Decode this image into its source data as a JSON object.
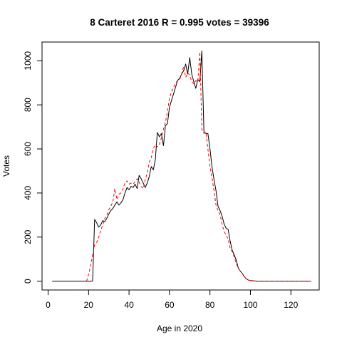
{
  "chart_data": {
    "type": "line",
    "title": "8 Carteret 2016 R = 0.995 votes = 39396",
    "xlabel": "Age in 2020",
    "ylabel": "Votes",
    "xlim": [
      -3,
      134
    ],
    "ylim": [
      -40,
      1085
    ],
    "xticks": [
      0,
      20,
      40,
      60,
      80,
      100,
      120
    ],
    "yticks": [
      0,
      200,
      400,
      600,
      800,
      1000
    ],
    "grid": false,
    "series": [
      {
        "style": "solid",
        "color": "#000000",
        "x": [
          2,
          21,
          22,
          23,
          24,
          25,
          26,
          27,
          28,
          29,
          30,
          31,
          32,
          33,
          34,
          35,
          36,
          37,
          38,
          39,
          40,
          41,
          42,
          43,
          44,
          45,
          46,
          47,
          48,
          49,
          50,
          51,
          52,
          53,
          54,
          55,
          56,
          57,
          58,
          59,
          60,
          61,
          62,
          63,
          64,
          65,
          66,
          67,
          68,
          69,
          70,
          71,
          72,
          73,
          74,
          75,
          76,
          77,
          78,
          79,
          80,
          81,
          82,
          83,
          84,
          85,
          86,
          87,
          88,
          89,
          90,
          91,
          92,
          93,
          94,
          95,
          96,
          97,
          98,
          99,
          100,
          101,
          102,
          103,
          104,
          105,
          106,
          107,
          108,
          110,
          115,
          120,
          130
        ],
        "y": [
          0,
          0,
          0,
          280,
          265,
          245,
          255,
          275,
          270,
          285,
          305,
          320,
          330,
          345,
          360,
          345,
          355,
          370,
          400,
          425,
          415,
          430,
          425,
          440,
          420,
          480,
          465,
          445,
          425,
          445,
          475,
          520,
          505,
          550,
          675,
          655,
          670,
          615,
          705,
          715,
          790,
          820,
          850,
          880,
          910,
          920,
          940,
          955,
          985,
          940,
          1015,
          940,
          905,
          875,
          915,
          905,
          1045,
          680,
          670,
          670,
          600,
          520,
          460,
          410,
          340,
          320,
          295,
          260,
          240,
          235,
          180,
          140,
          120,
          95,
          60,
          45,
          35,
          20,
          10,
          5,
          3,
          2,
          1,
          0,
          0,
          0,
          0,
          0,
          0,
          0,
          0,
          0,
          0
        ]
      },
      {
        "style": "dashed",
        "color": "#ff0000",
        "x": [
          19,
          20,
          21,
          22,
          23,
          24,
          25,
          26,
          27,
          28,
          29,
          30,
          31,
          32,
          33,
          34,
          35,
          36,
          37,
          38,
          39,
          40,
          41,
          42,
          43,
          44,
          45,
          46,
          47,
          48,
          49,
          50,
          51,
          52,
          53,
          54,
          55,
          56,
          57,
          58,
          59,
          60,
          61,
          62,
          63,
          64,
          65,
          66,
          67,
          68,
          69,
          70,
          71,
          72,
          73,
          74,
          75,
          76,
          77,
          78,
          79,
          80,
          81,
          82,
          83,
          84,
          85,
          86,
          87,
          88,
          89,
          90,
          91,
          92,
          93,
          94,
          95,
          96,
          97,
          98,
          99,
          100,
          101,
          102,
          103,
          104,
          105,
          106,
          108,
          110,
          115,
          120,
          130
        ],
        "y": [
          0,
          30,
          70,
          120,
          165,
          175,
          200,
          230,
          255,
          285,
          300,
          325,
          340,
          360,
          420,
          370,
          395,
          400,
          420,
          445,
          455,
          440,
          445,
          440,
          450,
          465,
          450,
          430,
          420,
          460,
          490,
          540,
          560,
          600,
          620,
          610,
          620,
          650,
          690,
          720,
          770,
          830,
          860,
          880,
          900,
          910,
          915,
          940,
          975,
          925,
          945,
          935,
          905,
          895,
          910,
          905,
          1040,
          690,
          670,
          675,
          600,
          520,
          470,
          410,
          345,
          320,
          300,
          260,
          225,
          210,
          190,
          150,
          135,
          110,
          80,
          60,
          45,
          35,
          20,
          10,
          5,
          3,
          2,
          1,
          0,
          0,
          0,
          0,
          0,
          0,
          0,
          0,
          0
        ]
      }
    ]
  }
}
